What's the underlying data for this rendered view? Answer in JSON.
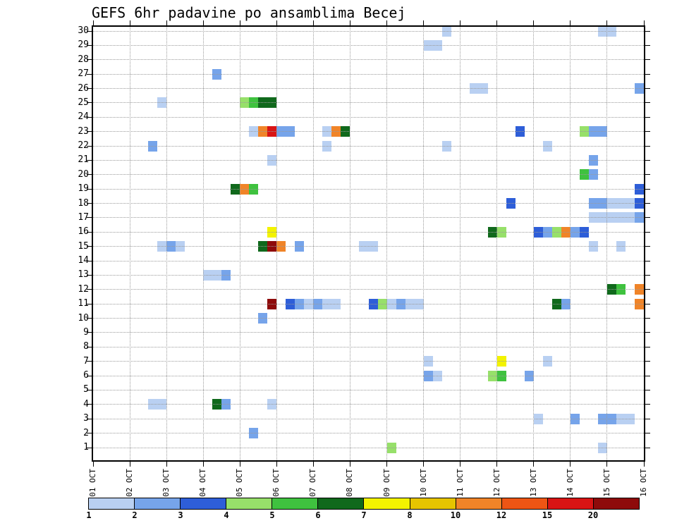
{
  "chart_data": {
    "type": "heatmap",
    "title": "GEFS 6hr padavine po ansamblima Becej",
    "x_axis": {
      "labels": [
        "01 OCT",
        "02 OCT",
        "03 OCT",
        "04 OCT",
        "05 OCT",
        "06 OCT",
        "07 OCT",
        "08 OCT",
        "09 OCT",
        "10 OCT",
        "11 OCT",
        "12 OCT",
        "13 OCT",
        "14 OCT",
        "15 OCT",
        "16 OCT"
      ],
      "slots_per_day": 4,
      "slot_hours": 6
    },
    "y_axis": {
      "labels": [
        "1",
        "2",
        "3",
        "4",
        "5",
        "6",
        "7",
        "8",
        "9",
        "10",
        "11",
        "12",
        "13",
        "14",
        "15",
        "16",
        "17",
        "18",
        "19",
        "20",
        "21",
        "22",
        "23",
        "24",
        "25",
        "26",
        "27",
        "28",
        "29",
        "30"
      ]
    },
    "legend": {
      "levels": [
        "1",
        "2",
        "3",
        "4",
        "5",
        "6",
        "7",
        "8",
        "10",
        "12",
        "15",
        "20"
      ],
      "colors": [
        "#b9d0f2",
        "#76a4ea",
        "#2e5ed8",
        "#97e06a",
        "#3fc23f",
        "#10691c",
        "#f3f300",
        "#e6c400",
        "#f08428",
        "#ee5514",
        "#d81414",
        "#8e0b0b"
      ]
    },
    "cell_format": [
      "ensemble_member",
      "slot_index_6h",
      "color_level_1_to_12",
      "width_slots_optional"
    ],
    "cells": [
      [
        30,
        38,
        1
      ],
      [
        30,
        55,
        1
      ],
      [
        30,
        56,
        1
      ],
      [
        29,
        36,
        1
      ],
      [
        29,
        37,
        1
      ],
      [
        27,
        13,
        2
      ],
      [
        26,
        41,
        1
      ],
      [
        26,
        42,
        1
      ],
      [
        26,
        59,
        2
      ],
      [
        25,
        7,
        1
      ],
      [
        25,
        16,
        4
      ],
      [
        25,
        17,
        5
      ],
      [
        25,
        18,
        6,
        2
      ],
      [
        23,
        17,
        1
      ],
      [
        23,
        18,
        9
      ],
      [
        23,
        19,
        11
      ],
      [
        23,
        20,
        2,
        2
      ],
      [
        23,
        25,
        1
      ],
      [
        23,
        26,
        9
      ],
      [
        23,
        27,
        6
      ],
      [
        23,
        46,
        3
      ],
      [
        23,
        53,
        4
      ],
      [
        23,
        54,
        2,
        2
      ],
      [
        22,
        6,
        2
      ],
      [
        22,
        25,
        1
      ],
      [
        22,
        38,
        1
      ],
      [
        22,
        49,
        1
      ],
      [
        21,
        19,
        1
      ],
      [
        21,
        54,
        2
      ],
      [
        20,
        53,
        5
      ],
      [
        20,
        54,
        2
      ],
      [
        19,
        15,
        6
      ],
      [
        19,
        16,
        9
      ],
      [
        19,
        17,
        5
      ],
      [
        19,
        59,
        3
      ],
      [
        18,
        45,
        3
      ],
      [
        18,
        54,
        2,
        2
      ],
      [
        18,
        56,
        1,
        2
      ],
      [
        18,
        58,
        1
      ],
      [
        18,
        59,
        3
      ],
      [
        17,
        54,
        1,
        2
      ],
      [
        17,
        56,
        1,
        2
      ],
      [
        17,
        58,
        1
      ],
      [
        17,
        59,
        2
      ],
      [
        16,
        19,
        7
      ],
      [
        16,
        43,
        6
      ],
      [
        16,
        44,
        4
      ],
      [
        16,
        48,
        3
      ],
      [
        16,
        49,
        2
      ],
      [
        16,
        50,
        4
      ],
      [
        16,
        51,
        9
      ],
      [
        16,
        52,
        2
      ],
      [
        16,
        53,
        3
      ],
      [
        15,
        7,
        1
      ],
      [
        15,
        8,
        2
      ],
      [
        15,
        9,
        1
      ],
      [
        15,
        18,
        6
      ],
      [
        15,
        19,
        12
      ],
      [
        15,
        20,
        9
      ],
      [
        15,
        22,
        2
      ],
      [
        15,
        29,
        1,
        2
      ],
      [
        15,
        54,
        1
      ],
      [
        15,
        57,
        1
      ],
      [
        13,
        12,
        1,
        2
      ],
      [
        13,
        14,
        2
      ],
      [
        12,
        56,
        6
      ],
      [
        12,
        57,
        5
      ],
      [
        12,
        59,
        9
      ],
      [
        11,
        19,
        12
      ],
      [
        11,
        21,
        3
      ],
      [
        11,
        22,
        2
      ],
      [
        11,
        23,
        1
      ],
      [
        11,
        24,
        2
      ],
      [
        11,
        25,
        1
      ],
      [
        11,
        26,
        1
      ],
      [
        11,
        30,
        3
      ],
      [
        11,
        31,
        4
      ],
      [
        11,
        32,
        1
      ],
      [
        11,
        33,
        2
      ],
      [
        11,
        34,
        1
      ],
      [
        11,
        35,
        1
      ],
      [
        11,
        50,
        6
      ],
      [
        11,
        51,
        2
      ],
      [
        11,
        59,
        9
      ],
      [
        10,
        18,
        2
      ],
      [
        7,
        36,
        1
      ],
      [
        7,
        44,
        7
      ],
      [
        7,
        49,
        1
      ],
      [
        6,
        36,
        2
      ],
      [
        6,
        37,
        1
      ],
      [
        6,
        43,
        4
      ],
      [
        6,
        44,
        5
      ],
      [
        6,
        47,
        2
      ],
      [
        4,
        6,
        1,
        2
      ],
      [
        4,
        13,
        6
      ],
      [
        4,
        14,
        2
      ],
      [
        4,
        19,
        1
      ],
      [
        3,
        48,
        1
      ],
      [
        3,
        52,
        2
      ],
      [
        3,
        55,
        2,
        2
      ],
      [
        3,
        57,
        1,
        2
      ],
      [
        2,
        17,
        2
      ],
      [
        1,
        32,
        4
      ],
      [
        1,
        55,
        1
      ]
    ]
  }
}
